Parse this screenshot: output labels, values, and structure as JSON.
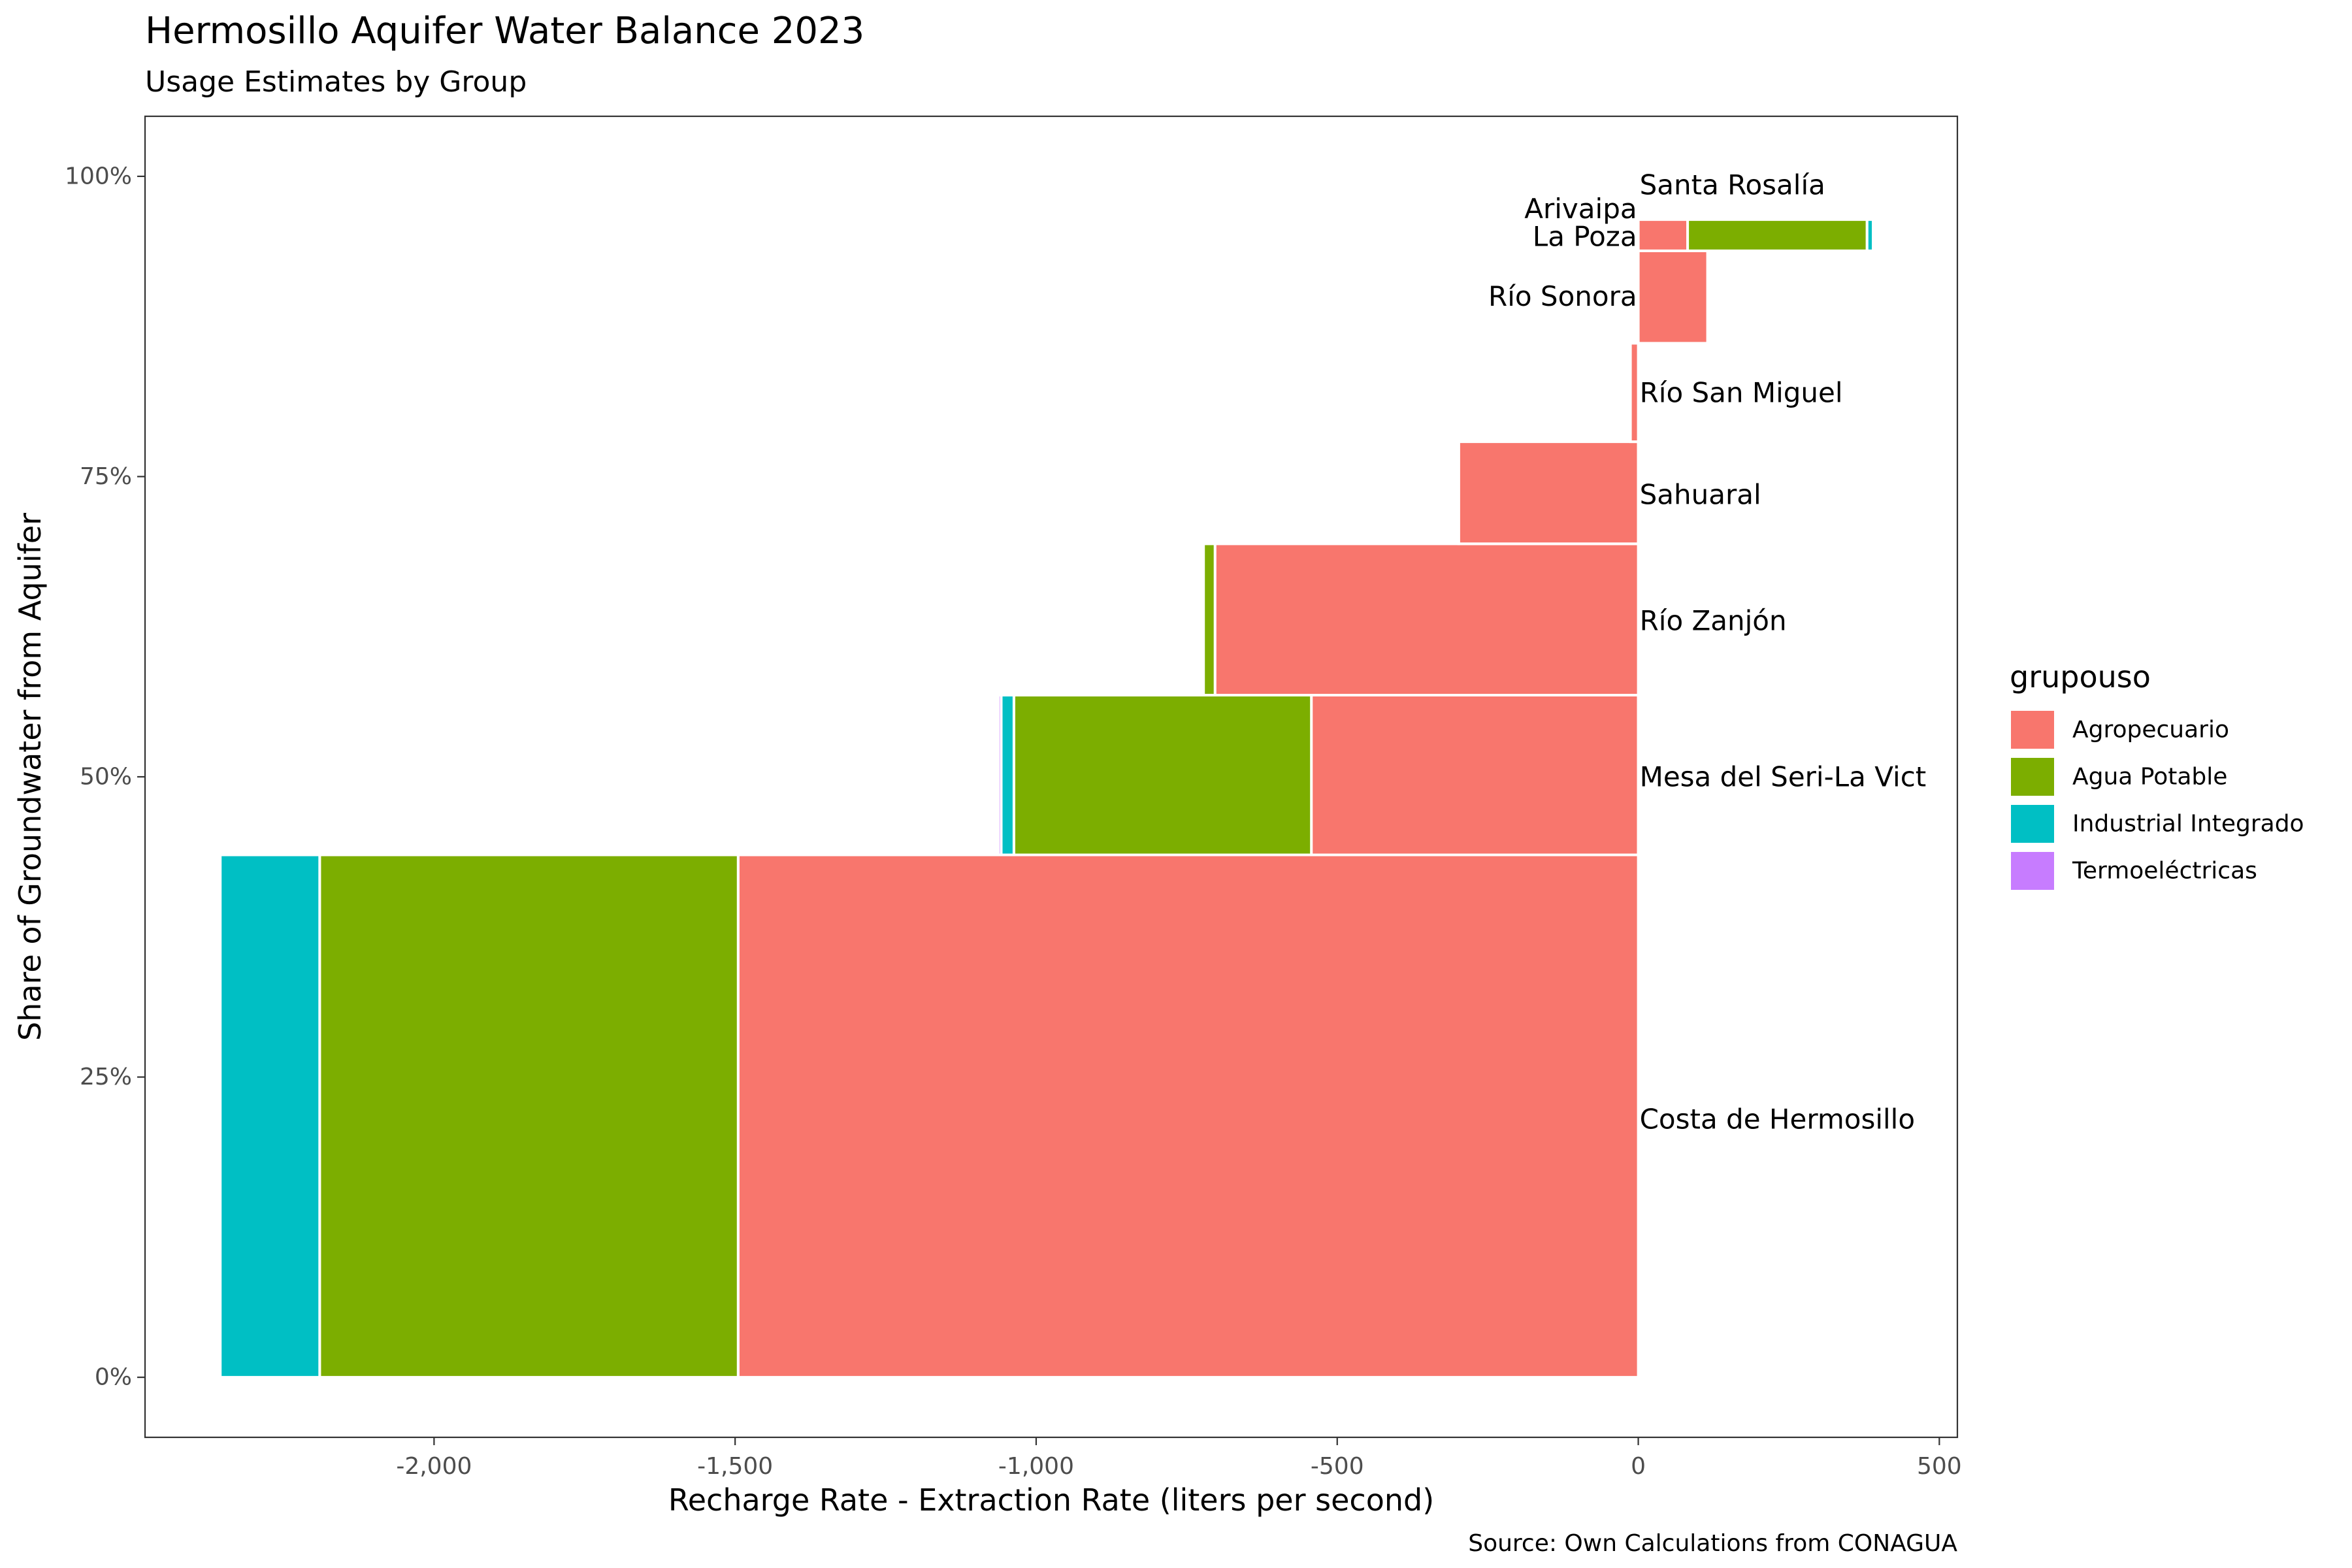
{
  "chart_data": {
    "type": "bar",
    "title": "Hermosillo Aquifer Water Balance 2023",
    "subtitle": "Usage Estimates by Group",
    "caption": "Source: Own Calculations from CONAGUA",
    "xlabel": "Recharge Rate - Extraction Rate (liters per second)",
    "ylabel": "Share of Groundwater from Aquifer",
    "xlim": [
      -2480,
      530
    ],
    "ylim": [
      -5,
      105
    ],
    "x_ticks": [
      -2000,
      -1500,
      -1000,
      -500,
      0,
      500
    ],
    "x_tick_labels": [
      "-2,000",
      "-1,500",
      "-1,000",
      "-500",
      "0",
      "500"
    ],
    "y_ticks": [
      0,
      25,
      50,
      75,
      100
    ],
    "y_tick_labels": [
      "0%",
      "25%",
      "50%",
      "75%",
      "100%"
    ],
    "grid": false,
    "legend": {
      "title": "grupouso",
      "position": "right",
      "entries": [
        {
          "name": "Agropecuario",
          "color": "#F8766D"
        },
        {
          "name": "Agua Potable",
          "color": "#7CAE00"
        },
        {
          "name": "Industrial Integrado",
          "color": "#00BFC4"
        },
        {
          "name": "Termoeléctricas",
          "color": "#C77CFF"
        }
      ]
    },
    "aquifers": [
      {
        "name": "Costa de Hermosillo",
        "ymin": 0,
        "ymax": 43.5,
        "label_y": 21.5,
        "label_side": "right",
        "segments": [
          {
            "group": "Agropecuario",
            "start": 0,
            "end": -1495
          },
          {
            "group": "Agua Potable",
            "start": -1495,
            "end": -2190
          },
          {
            "group": "Industrial Integrado",
            "start": -2190,
            "end": -2355
          }
        ]
      },
      {
        "name": "Mesa del Seri-La Vict",
        "ymin": 43.5,
        "ymax": 56.8,
        "label_y": 50,
        "label_side": "right",
        "segments": [
          {
            "group": "Agropecuario",
            "start": 0,
            "end": -543
          },
          {
            "group": "Agua Potable",
            "start": -543,
            "end": -1037
          },
          {
            "group": "Industrial Integrado",
            "start": -1037,
            "end": -1058
          },
          {
            "group": "Termoeléctricas",
            "start": -1058,
            "end": -1063
          }
        ]
      },
      {
        "name": "Río Zanjón",
        "ymin": 56.8,
        "ymax": 69.4,
        "label_y": 63,
        "label_side": "right",
        "segments": [
          {
            "group": "Agropecuario",
            "start": 0,
            "end": -703
          },
          {
            "group": "Agua Potable",
            "start": -703,
            "end": -722
          }
        ]
      },
      {
        "name": "Sahuaral",
        "ymin": 69.4,
        "ymax": 77.9,
        "label_y": 73.5,
        "label_side": "right",
        "segments": [
          {
            "group": "Agropecuario",
            "start": 0,
            "end": -298
          }
        ]
      },
      {
        "name": "Río San Miguel",
        "ymin": 77.9,
        "ymax": 86.1,
        "label_y": 82,
        "label_side": "right",
        "segments": [
          {
            "group": "Agropecuario",
            "start": 0,
            "end": -13
          }
        ]
      },
      {
        "name": "Río Sonora",
        "ymin": 86.1,
        "ymax": 93.8,
        "label_y": 90,
        "label_side": "left",
        "segments": [
          {
            "group": "Agropecuario",
            "start": 0,
            "end": 115
          }
        ]
      },
      {
        "name": "La Poza",
        "ymin": 93.8,
        "ymax": 96.4,
        "label_y": 95,
        "label_side": "left",
        "segments": [
          {
            "group": "Agropecuario",
            "start": 0,
            "end": 82
          },
          {
            "group": "Agua Potable",
            "start": 82,
            "end": 380
          },
          {
            "group": "Industrial Integrado",
            "start": 380,
            "end": 390
          }
        ]
      },
      {
        "name": "Arivaipa",
        "ymin": 96.4,
        "ymax": 96.6,
        "label_y": 97.3,
        "label_side": "left",
        "segments": []
      },
      {
        "name": "Santa Rosalía",
        "ymin": 96.6,
        "ymax": 96.8,
        "label_y": 99.3,
        "label_side": "right",
        "segments": []
      }
    ]
  }
}
